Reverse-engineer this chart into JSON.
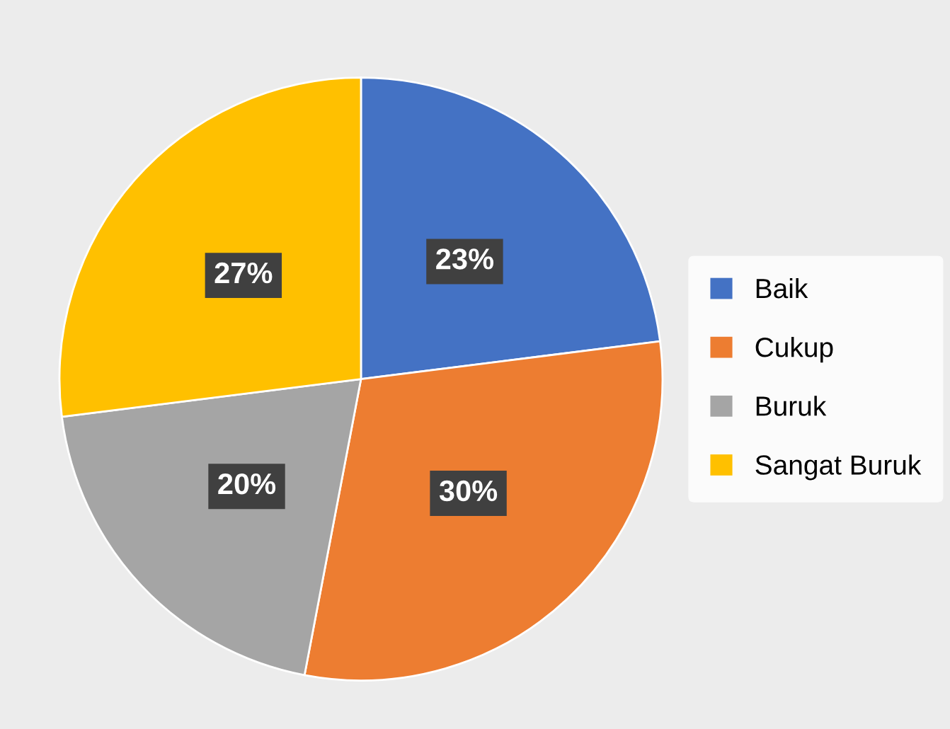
{
  "chart_data": {
    "type": "pie",
    "categories": [
      "Baik",
      "Cukup",
      "Buruk",
      "Sangat Buruk"
    ],
    "values": [
      23,
      30,
      20,
      27
    ],
    "colors": [
      "#4472c4",
      "#ed7d31",
      "#a5a5a5",
      "#ffc000"
    ],
    "value_labels": [
      "23%",
      "30%",
      "20%",
      "27%"
    ],
    "legend": "right"
  }
}
